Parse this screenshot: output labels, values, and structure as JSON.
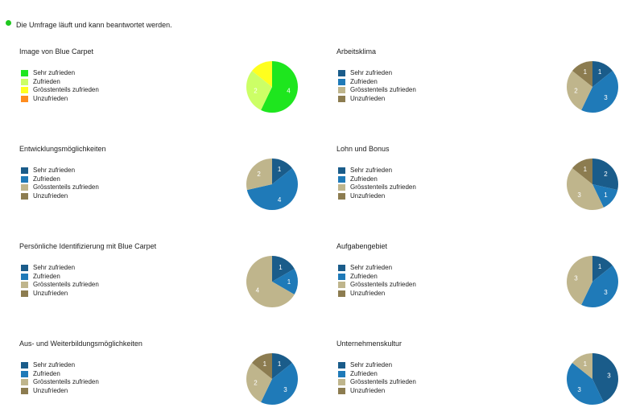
{
  "status": {
    "text": "Die Umfrage läuft und kann beantwortet werden.",
    "dot_color": "#1ec81e"
  },
  "legend_labels": [
    "Sehr zufrieden",
    "Zufrieden",
    "Grösstenteils zufrieden",
    "Unzufrieden"
  ],
  "chart_data": [
    {
      "type": "pie",
      "title": "Image von Blue Carpet",
      "categories": [
        "Sehr zufrieden",
        "Zufrieden",
        "Grösstenteils zufrieden",
        "Unzufrieden"
      ],
      "values": [
        4,
        2,
        1,
        0
      ],
      "data_labels": [
        "4",
        "2",
        "",
        ""
      ],
      "colors": [
        "#1ee61e",
        "#ccff66",
        "#ffff1e",
        "#ff8c1e"
      ]
    },
    {
      "type": "pie",
      "title": "Arbeitsklima",
      "categories": [
        "Sehr zufrieden",
        "Zufrieden",
        "Grösstenteils zufrieden",
        "Unzufrieden"
      ],
      "values": [
        1,
        3,
        2,
        1
      ],
      "data_labels": [
        "1",
        "3",
        "2",
        "1"
      ],
      "colors": [
        "#1a5c8a",
        "#1f7ab8",
        "#bfb58c",
        "#8c7c50"
      ]
    },
    {
      "type": "pie",
      "title": "Entwicklungsmöglichkeiten",
      "categories": [
        "Sehr zufrieden",
        "Zufrieden",
        "Grösstenteils zufrieden",
        "Unzufrieden"
      ],
      "values": [
        1,
        4,
        2,
        0
      ],
      "data_labels": [
        "1",
        "4",
        "2",
        ""
      ],
      "colors": [
        "#1a5c8a",
        "#1f7ab8",
        "#bfb58c",
        "#8c7c50"
      ]
    },
    {
      "type": "pie",
      "title": "Lohn und Bonus",
      "categories": [
        "Sehr zufrieden",
        "Zufrieden",
        "Grösstenteils zufrieden",
        "Unzufrieden"
      ],
      "values": [
        2,
        1,
        3,
        1
      ],
      "data_labels": [
        "2",
        "1",
        "3",
        "1"
      ],
      "colors": [
        "#1a5c8a",
        "#1f7ab8",
        "#bfb58c",
        "#8c7c50"
      ]
    },
    {
      "type": "pie",
      "title": "Persönliche Identifizierung mit Blue Carpet",
      "categories": [
        "Sehr zufrieden",
        "Zufrieden",
        "Grösstenteils zufrieden",
        "Unzufrieden"
      ],
      "values": [
        1,
        1,
        4,
        0
      ],
      "data_labels": [
        "1",
        "1",
        "4",
        ""
      ],
      "colors": [
        "#1a5c8a",
        "#1f7ab8",
        "#bfb58c",
        "#8c7c50"
      ]
    },
    {
      "type": "pie",
      "title": "Aufgabengebiet",
      "categories": [
        "Sehr zufrieden",
        "Zufrieden",
        "Grösstenteils zufrieden",
        "Unzufrieden"
      ],
      "values": [
        1,
        3,
        3,
        0
      ],
      "data_labels": [
        "1",
        "3",
        "3",
        ""
      ],
      "colors": [
        "#1a5c8a",
        "#1f7ab8",
        "#bfb58c",
        "#8c7c50"
      ]
    },
    {
      "type": "pie",
      "title": "Aus- und Weiterbildungsmöglichkeiten",
      "categories": [
        "Sehr zufrieden",
        "Zufrieden",
        "Grösstenteils zufrieden",
        "Unzufrieden"
      ],
      "values": [
        1,
        3,
        2,
        1
      ],
      "data_labels": [
        "1",
        "3",
        "2",
        "1"
      ],
      "colors": [
        "#1a5c8a",
        "#1f7ab8",
        "#bfb58c",
        "#8c7c50"
      ]
    },
    {
      "type": "pie",
      "title": "Unternehmenskultur",
      "categories": [
        "Sehr zufrieden",
        "Zufrieden",
        "Grösstenteils zufrieden",
        "Unzufrieden"
      ],
      "values": [
        3,
        3,
        1,
        0
      ],
      "data_labels": [
        "3",
        "3",
        "1",
        ""
      ],
      "colors": [
        "#1a5c8a",
        "#1f7ab8",
        "#bfb58c",
        "#8c7c50"
      ]
    }
  ]
}
